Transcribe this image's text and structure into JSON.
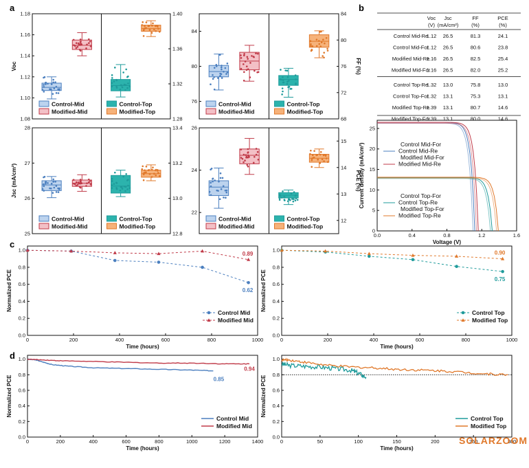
{
  "panel_labels": {
    "a": "a",
    "b": "b",
    "c": "c",
    "d": "d"
  },
  "watermark": "SOLARZOOM",
  "colors": {
    "control_mid": "#4b7fbf",
    "control_mid_fill": "#bcd3ee",
    "modified_mid": "#c03a48",
    "modified_mid_fill": "#f3c0c6",
    "control_top": "#1f9b9b",
    "control_top_fill": "#2cb3ad",
    "modified_top": "#e0782a",
    "modified_top_fill": "#f6b27a"
  },
  "table": {
    "headers": [
      [
        "",
        ""
      ],
      [
        "Voc",
        "(V)"
      ],
      [
        "Jsc",
        "(mA/cm²)"
      ],
      [
        "FF",
        "(%)"
      ],
      [
        "PCE",
        "(%)"
      ]
    ],
    "rows": [
      [
        "Control Mid-Re",
        "1.12",
        "26.5",
        "81.3",
        "24.1"
      ],
      [
        "Control Mid-For",
        "1.12",
        "26.5",
        "80.6",
        "23.8"
      ],
      [
        "Modified Mid-Re",
        "1.16",
        "26.5",
        "82.5",
        "25.4"
      ],
      [
        "Modified Mid-For",
        "1.16",
        "26.5",
        "82.0",
        "25.2"
      ],
      [
        "Control Top-Re",
        "1.32",
        "13.0",
        "75.8",
        "13.0"
      ],
      [
        "Control Top-For",
        "1.32",
        "13.1",
        "75.3",
        "13.1"
      ],
      [
        "Modified Top-Re",
        "1.39",
        "13.1",
        "80.7",
        "14.6"
      ],
      [
        "Modified Top-For",
        "1.39",
        "13.1",
        "80.0",
        "14.6"
      ]
    ]
  },
  "chart_data": [
    {
      "id": "voc_box",
      "type": "box",
      "ylabel_left": "Voc",
      "ylabel_right": "",
      "left_ylim": [
        1.08,
        1.18
      ],
      "left_ticks": [
        "1.08",
        "1.10",
        "1.12",
        "1.14",
        "1.16",
        "1.18"
      ],
      "right_ylim": [
        1.28,
        1.4
      ],
      "right_ticks": [
        "1.28",
        "1.32",
        "1.36",
        "1.40"
      ],
      "series": [
        {
          "name": "Control-Mid",
          "axis": "left",
          "q1": 1.107,
          "median": 1.11,
          "q3": 1.114,
          "whisker_low": 1.099,
          "whisker_high": 1.12
        },
        {
          "name": "Modified-Mid",
          "axis": "left",
          "q1": 1.146,
          "median": 1.15,
          "q3": 1.155,
          "whisker_low": 1.14,
          "whisker_high": 1.162
        },
        {
          "name": "Control-Top",
          "axis": "right",
          "q1": 1.312,
          "median": 1.318,
          "q3": 1.325,
          "whisker_low": 1.305,
          "whisker_high": 1.342
        },
        {
          "name": "Modified-Top",
          "axis": "right",
          "q1": 1.38,
          "median": 1.383,
          "q3": 1.387,
          "whisker_low": 1.374,
          "whisker_high": 1.392
        }
      ]
    },
    {
      "id": "ff_box",
      "type": "box",
      "ylabel_left": "",
      "ylabel_right": "FF (%)",
      "left_ylim": [
        74,
        86
      ],
      "left_ticks": [
        "76",
        "80",
        "84"
      ],
      "right_ylim": [
        68,
        84
      ],
      "right_ticks": [
        "68",
        "72",
        "76",
        "80",
        "84"
      ],
      "series": [
        {
          "name": "Control-Mid",
          "axis": "left",
          "q1": 78.8,
          "median": 79.4,
          "q3": 80.1,
          "whisker_low": 77.3,
          "whisker_high": 81.4
        },
        {
          "name": "Modified-Mid",
          "axis": "left",
          "q1": 79.6,
          "median": 80.6,
          "q3": 81.6,
          "whisker_low": 78.3,
          "whisker_high": 82.4
        },
        {
          "name": "Control-Top",
          "axis": "right",
          "q1": 73.1,
          "median": 74.0,
          "q3": 74.6,
          "whisker_low": 71.3,
          "whisker_high": 75.7
        },
        {
          "name": "Modified-Top",
          "axis": "right",
          "q1": 78.9,
          "median": 79.8,
          "q3": 80.8,
          "whisker_low": 77.3,
          "whisker_high": 81.4
        }
      ]
    },
    {
      "id": "jsc_box",
      "type": "box",
      "ylabel_left": "Jsc (mA/cm²)",
      "ylabel_right": "",
      "left_ylim": [
        25,
        28
      ],
      "left_ticks": [
        "25",
        "26",
        "27",
        "28"
      ],
      "right_ylim": [
        12.8,
        13.4
      ],
      "right_ticks": [
        "12.8",
        "13.0",
        "13.2",
        "13.4"
      ],
      "series": [
        {
          "name": "Control-Mid",
          "axis": "left",
          "q1": 26.22,
          "median": 26.38,
          "q3": 26.5,
          "whisker_low": 26.02,
          "whisker_high": 26.62
        },
        {
          "name": "Modified-Mid",
          "axis": "left",
          "q1": 26.34,
          "median": 26.43,
          "q3": 26.52,
          "whisker_low": 26.2,
          "whisker_high": 26.67
        },
        {
          "name": "Control-Top",
          "axis": "right",
          "q1": 13.03,
          "median": 13.07,
          "q3": 13.13,
          "whisker_low": 13.01,
          "whisker_high": 13.16
        },
        {
          "name": "Modified-Top",
          "axis": "right",
          "q1": 13.12,
          "median": 13.14,
          "q3": 13.16,
          "whisker_low": 13.1,
          "whisker_high": 13.19
        }
      ]
    },
    {
      "id": "pce_box",
      "type": "box",
      "ylabel_left": "",
      "ylabel_right": "PCE (%)",
      "left_ylim": [
        21,
        26
      ],
      "left_ticks": [
        "22",
        "24",
        "26"
      ],
      "right_ylim": [
        11.5,
        15.5
      ],
      "right_ticks": [
        "12",
        "13",
        "14",
        "15"
      ],
      "series": [
        {
          "name": "Control-Mid",
          "axis": "left",
          "q1": 22.8,
          "median": 23.2,
          "q3": 23.5,
          "whisker_low": 22.2,
          "whisker_high": 24.1
        },
        {
          "name": "Modified-Mid",
          "axis": "left",
          "q1": 24.3,
          "median": 24.7,
          "q3": 25.0,
          "whisker_low": 23.8,
          "whisker_high": 25.5
        },
        {
          "name": "Control-Top",
          "axis": "right",
          "q1": 12.85,
          "median": 12.95,
          "q3": 13.05,
          "whisker_low": 12.6,
          "whisker_high": 13.15
        },
        {
          "name": "Modified-Top",
          "axis": "right",
          "q1": 14.2,
          "median": 14.35,
          "q3": 14.5,
          "whisker_low": 14.0,
          "whisker_high": 14.7
        }
      ]
    },
    {
      "id": "jv",
      "type": "line",
      "xlabel": "Voltage (V)",
      "ylabel": "Current density (mA/cm²)",
      "xlim": [
        0,
        1.6
      ],
      "ylim": [
        0,
        27
      ],
      "x_ticks": [
        "0.0",
        "0.4",
        "0.8",
        "1.2",
        "1.6"
      ],
      "y_ticks": [
        "0",
        "5",
        "10",
        "15",
        "20",
        "25"
      ],
      "legend_top": [
        "Control Mid-For",
        "Control Mid-Re",
        "Modified Mid-For",
        "Modified Mid-Re"
      ],
      "legend_bottom": [
        "Control Top-For",
        "Control Top-Re",
        "Modified Top-For",
        "Modified Top-Re"
      ],
      "series": [
        {
          "name": "Control Mid-Re",
          "jsc": 26.5,
          "voc": 1.12,
          "vmp": 0.98
        },
        {
          "name": "Modified Mid-Re",
          "jsc": 26.5,
          "voc": 1.16,
          "vmp": 1.03
        },
        {
          "name": "Control Top-Re",
          "jsc": 13.0,
          "voc": 1.32,
          "vmp": 1.08
        },
        {
          "name": "Modified Top-Re",
          "jsc": 13.1,
          "voc": 1.39,
          "vmp": 1.2
        }
      ]
    },
    {
      "id": "stab_mid",
      "type": "line",
      "xlabel": "Time (hours)",
      "ylabel": "Normalized PCE",
      "xlim": [
        0,
        1000
      ],
      "ylim": [
        0,
        1.05
      ],
      "x_ticks": [
        "0",
        "200",
        "400",
        "600",
        "800",
        "1000"
      ],
      "y_ticks": [
        "0.0",
        "0.2",
        "0.4",
        "0.6",
        "0.8",
        "1.0"
      ],
      "series": [
        {
          "name": "Control Mid",
          "x": [
            0,
            190,
            380,
            570,
            760,
            960
          ],
          "y": [
            1.0,
            0.99,
            0.88,
            0.86,
            0.8,
            0.62
          ]
        },
        {
          "name": "Modified Mid",
          "x": [
            0,
            190,
            380,
            570,
            760,
            960
          ],
          "y": [
            1.0,
            0.99,
            0.97,
            0.96,
            0.99,
            0.89
          ]
        }
      ],
      "end_labels": [
        "0.62",
        "0.89"
      ]
    },
    {
      "id": "stab_top",
      "type": "line",
      "xlabel": "Time (hours)",
      "ylabel": "Normalized PCE",
      "xlim": [
        0,
        1000
      ],
      "ylim": [
        0,
        1.05
      ],
      "x_ticks": [
        "0",
        "200",
        "400",
        "600",
        "800",
        "1000"
      ],
      "y_ticks": [
        "0.0",
        "0.2",
        "0.4",
        "0.6",
        "0.8",
        "1.0"
      ],
      "series": [
        {
          "name": "Control Top",
          "x": [
            0,
            190,
            380,
            570,
            760,
            960
          ],
          "y": [
            1.0,
            0.98,
            0.93,
            0.89,
            0.81,
            0.75
          ]
        },
        {
          "name": "Modified Top",
          "x": [
            0,
            190,
            380,
            570,
            760,
            960
          ],
          "y": [
            1.0,
            0.99,
            0.96,
            0.94,
            0.93,
            0.9
          ]
        }
      ],
      "end_labels": [
        "0.75",
        "0.90"
      ]
    },
    {
      "id": "long_mid",
      "type": "line",
      "xlabel": "Time (hours)",
      "ylabel": "Normalized PCE",
      "xlim": [
        0,
        1400
      ],
      "ylim": [
        0,
        1.05
      ],
      "x_ticks": [
        "0",
        "200",
        "400",
        "600",
        "800",
        "1000",
        "1200",
        "1400"
      ],
      "y_ticks": [
        "0.0",
        "0.2",
        "0.4",
        "0.6",
        "0.8",
        "1.0"
      ],
      "series": [
        {
          "name": "Control Mid",
          "x": [
            0,
            50,
            100,
            150,
            250,
            400,
            600,
            800,
            1000,
            1130
          ],
          "y": [
            1.0,
            0.99,
            0.96,
            0.93,
            0.91,
            0.89,
            0.88,
            0.87,
            0.86,
            0.85
          ]
        },
        {
          "name": "Modified Mid",
          "x": [
            0,
            100,
            200,
            400,
            600,
            800,
            1000,
            1200,
            1350
          ],
          "y": [
            1.0,
            0.99,
            0.98,
            0.97,
            0.96,
            0.95,
            0.95,
            0.94,
            0.94
          ]
        }
      ],
      "end_labels": [
        "0.85",
        "0.94"
      ]
    },
    {
      "id": "long_top",
      "type": "line",
      "xlabel": "Time (hours)",
      "ylabel": "Normalized PCE",
      "xlim": [
        0,
        300
      ],
      "ylim": [
        0,
        1.05
      ],
      "x_ticks": [
        "0",
        "50",
        "100",
        "150",
        "200",
        "250",
        "300"
      ],
      "y_ticks": [
        "0.0",
        "0.2",
        "0.4",
        "0.6",
        "0.8",
        "1.0"
      ],
      "reference_line": 0.8,
      "series": [
        {
          "name": "Control Top",
          "x": [
            0,
            10,
            30,
            50,
            70,
            90,
            100,
            110
          ],
          "y": [
            0.94,
            0.92,
            0.91,
            0.9,
            0.88,
            0.86,
            0.82,
            0.77
          ]
        },
        {
          "name": "Modified Top",
          "x": [
            0,
            10,
            30,
            60,
            90,
            120,
            150,
            180,
            210,
            240,
            270,
            295
          ],
          "y": [
            0.99,
            0.99,
            0.96,
            0.92,
            0.9,
            0.89,
            0.87,
            0.86,
            0.85,
            0.83,
            0.81,
            0.8
          ]
        }
      ]
    }
  ]
}
